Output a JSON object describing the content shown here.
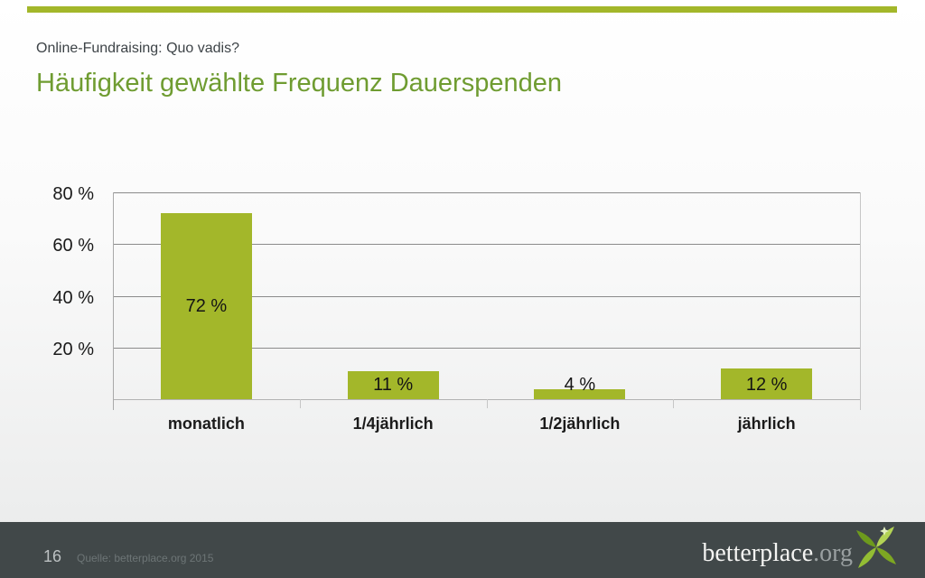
{
  "slide": {
    "subtitle": "Online-Fundraising: Quo vadis?",
    "title": "Häufigkeit gewählte Frequenz Dauerspenden",
    "accent_color": "#a3b72a",
    "title_color": "#6f9c31"
  },
  "chart_data": {
    "type": "bar",
    "title": "Häufigkeit gewählte Frequenz Dauerspenden",
    "categories": [
      "monatlich",
      "1/4jährlich",
      "1/2jährlich",
      "jährlich"
    ],
    "values": [
      72,
      11,
      4,
      12
    ],
    "value_labels": [
      "72 %",
      "11 %",
      "4 %",
      "12 %"
    ],
    "y_ticks": [
      "80 %",
      "60 %",
      "40 %",
      "20 %"
    ],
    "y_tick_values": [
      80,
      60,
      40,
      20
    ],
    "ylim": [
      0,
      80
    ],
    "xlabel": "",
    "ylabel": "",
    "bar_color": "#a3b72a",
    "grid": true,
    "legend": "none"
  },
  "footer": {
    "page_number": "16",
    "source": "Quelle: betterplace.org 2015",
    "logo_text": "betterplace",
    "logo_suffix": ".org",
    "background": "#414849",
    "pinwheel_colors": [
      "#b3d355",
      "#7da722",
      "#93bd33",
      "#6d9a1d",
      "#e4f0c0"
    ]
  }
}
